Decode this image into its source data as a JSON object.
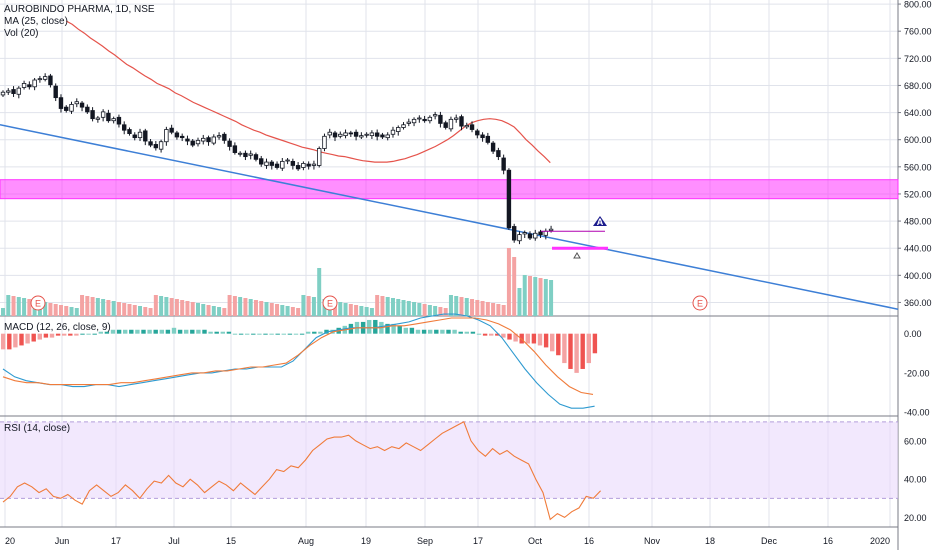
{
  "header": {
    "symbol_line": "AUROBINDO PHARMA, 1D, NSE",
    "ma_label": "MA (25, close)",
    "vol_label": "Vol (20)",
    "macd_label": "MACD (12, 26, close, 9)",
    "rsi_label": "RSI (14, close)"
  },
  "colors": {
    "up": "#131722",
    "down": "#131722",
    "ma": "#e5534b",
    "trendline": "#3d7fd6",
    "zone": "#ff33ff",
    "vol_up": "#7fcfc4",
    "vol_down": "#f4a3a3",
    "macd_line": "#2e9ad0",
    "signal_line": "#f07b3a",
    "rsi": "#f07b3a",
    "rsi_band": "#e9d8fb",
    "grid": "#e0e3eb",
    "text": "#131722"
  },
  "chart_data": [
    {
      "type": "candlestick",
      "title": "AUROBINDO PHARMA, 1D, NSE",
      "x_ticks": [
        "20",
        "Jun",
        "17",
        "Jul",
        "15",
        "Aug",
        "19",
        "Sep",
        "17",
        "Oct",
        "16",
        "Nov",
        "18",
        "Dec",
        "16",
        "2020"
      ],
      "y_ticks": [
        "800.00",
        "760.00",
        "720.00",
        "680.00",
        "640.00",
        "600.00",
        "560.00",
        "520.00",
        "480.00",
        "440.00",
        "400.00",
        "360.00"
      ],
      "ylim": [
        340,
        806
      ],
      "close_series": [
        670,
        672,
        668,
        676,
        683,
        678,
        688,
        690,
        693,
        681,
        662,
        646,
        643,
        652,
        656,
        648,
        641,
        631,
        632,
        641,
        628,
        631,
        623,
        614,
        609,
        603,
        611,
        598,
        592,
        588,
        597,
        615,
        611,
        604,
        603,
        598,
        592,
        599,
        602,
        597,
        604,
        606,
        599,
        590,
        581,
        580,
        575,
        579,
        571,
        564,
        567,
        562,
        559,
        568,
        570,
        562,
        557,
        565,
        561,
        564,
        587,
        605,
        611,
        604,
        608,
        610,
        609,
        605,
        606,
        608,
        610,
        605,
        604,
        607,
        614,
        618,
        622,
        626,
        630,
        632,
        628,
        633,
        637,
        624,
        618,
        630,
        632,
        620,
        621,
        615,
        607,
        603,
        596,
        583,
        575,
        555,
        470,
        452,
        460,
        463,
        455,
        462,
        460,
        465,
        468
      ],
      "ma_label": "MA (25, close)",
      "ma_series": [
        775,
        770,
        763,
        757,
        750,
        744,
        738,
        731,
        725,
        718,
        711,
        706,
        700,
        694,
        689,
        683,
        679,
        675,
        669,
        665,
        660,
        655,
        651,
        647,
        643,
        639,
        635,
        631,
        627,
        622,
        618,
        614,
        611,
        607,
        604,
        601,
        598,
        595,
        592,
        589,
        587,
        585,
        582,
        580,
        578,
        576,
        575,
        573,
        571,
        569,
        568,
        567,
        567,
        567,
        568,
        570,
        572,
        575,
        578,
        582,
        586,
        590,
        595,
        600,
        606,
        613,
        620,
        625,
        628,
        630,
        631,
        630,
        628,
        624,
        619,
        610,
        600,
        592,
        583,
        575,
        566
      ],
      "ma_start_index": 12,
      "supply_zone": [
        513,
        541
      ],
      "trendline": {
        "from": [
          "start",
          622
        ],
        "to": [
          "end",
          350
        ]
      },
      "marker_A": "A",
      "events": [
        "E",
        "E",
        "E"
      ],
      "volume_label": "Vol (20)"
    },
    {
      "type": "bar",
      "title": "MACD (12, 26, close, 9)",
      "y_ticks": [
        "0.00",
        "-20.00",
        "-40.00"
      ],
      "ylim": [
        -42,
        8
      ],
      "histogram": [
        -8,
        -8,
        -7,
        -6,
        -5,
        -4,
        -3,
        -2,
        -2,
        -1,
        -1,
        -1,
        -1,
        0,
        0,
        0,
        1,
        1,
        2,
        2,
        2,
        2,
        2,
        2,
        2,
        2,
        2,
        2,
        3,
        2,
        2,
        2,
        2,
        2,
        1,
        1,
        1,
        1,
        0,
        0,
        0,
        0,
        0,
        0,
        0,
        0,
        0,
        0,
        0,
        0,
        1,
        1,
        1,
        2,
        2,
        3,
        4,
        5,
        6,
        6,
        7,
        7,
        6,
        5,
        5,
        4,
        3,
        3,
        2,
        2,
        2,
        2,
        2,
        2,
        2,
        1,
        1,
        1,
        0,
        -1,
        -1,
        -1,
        -2,
        -3,
        -4,
        -5,
        -5,
        -5,
        -6,
        -7,
        -9,
        -11,
        -15,
        -18,
        -20,
        -18,
        -15,
        -10
      ],
      "macd_line": [
        -18,
        -22,
        -24,
        -25,
        -26,
        -26,
        -27,
        -27,
        -26,
        -26,
        -27,
        -26,
        -25,
        -24,
        -23,
        -22,
        -21,
        -20,
        -20,
        -19,
        -18,
        -18,
        -17,
        -17,
        -17,
        -14,
        -8,
        -2,
        1,
        2,
        3,
        3,
        3,
        4,
        5,
        6,
        8,
        9,
        10,
        10,
        9,
        7,
        4,
        -2,
        -10,
        -18,
        -25,
        -31,
        -36,
        -38,
        -38,
        -37
      ],
      "signal_line": [
        -22,
        -24,
        -25,
        -25,
        -26,
        -26,
        -26,
        -26,
        -26,
        -26,
        -25,
        -25,
        -24,
        -23,
        -22,
        -21,
        -20,
        -20,
        -19,
        -19,
        -18,
        -17,
        -17,
        -16,
        -15,
        -11,
        -6,
        -2,
        1,
        2,
        3,
        3,
        3,
        4,
        4,
        5,
        6,
        7,
        8,
        8,
        8,
        7,
        5,
        2,
        -3,
        -9,
        -16,
        -22,
        -27,
        -30,
        -31
      ]
    },
    {
      "type": "line",
      "title": "RSI (14, close)",
      "y_ticks": [
        "60.00",
        "40.00",
        "20.00"
      ],
      "ylim": [
        15,
        72
      ],
      "band": [
        30,
        70
      ],
      "values": [
        28,
        31,
        36,
        38,
        36,
        33,
        35,
        31,
        30,
        32,
        29,
        27,
        34,
        37,
        34,
        31,
        33,
        37,
        34,
        30,
        35,
        39,
        38,
        42,
        38,
        36,
        40,
        37,
        33,
        36,
        39,
        37,
        34,
        38,
        35,
        32,
        36,
        40,
        45,
        44,
        47,
        46,
        50,
        55,
        58,
        61,
        62,
        62,
        63,
        60,
        58,
        56,
        57,
        55,
        57,
        56,
        59,
        57,
        55,
        58,
        61,
        64,
        66,
        68,
        70,
        60,
        55,
        52,
        56,
        53,
        55,
        52,
        50,
        48,
        40,
        33,
        19,
        22,
        20,
        23,
        25,
        31,
        30,
        34
      ]
    }
  ]
}
